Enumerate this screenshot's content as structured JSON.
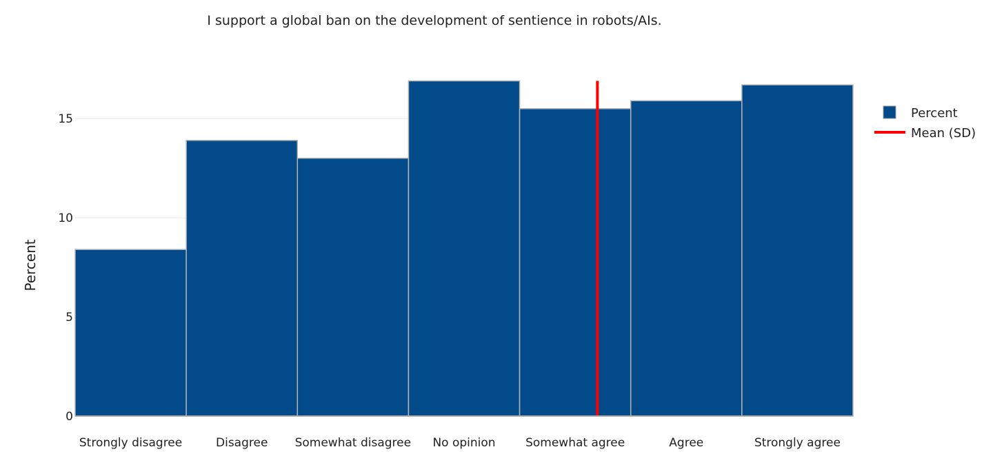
{
  "chart_data": {
    "type": "bar",
    "title": "I support a global ban on the development of sentience in robots/AIs.",
    "ylabel": "Percent",
    "xlabel": "",
    "categories": [
      "Strongly disagree",
      "Disagree",
      "Somewhat disagree",
      "No opinion",
      "Somewhat agree",
      "Agree",
      "Strongly agree"
    ],
    "series": [
      {
        "name": "Percent",
        "type": "bar",
        "color": "#034a8a",
        "values": [
          8.4,
          13.9,
          13.0,
          16.9,
          15.5,
          15.9,
          16.7
        ]
      },
      {
        "name": "Mean (SD)",
        "type": "vline",
        "color": "#ff0000",
        "x": 4.2
      }
    ],
    "ylim": [
      0,
      18.2
    ],
    "yticks": [
      0,
      5,
      10,
      15
    ],
    "grid": true,
    "legend_position": "top-right"
  }
}
